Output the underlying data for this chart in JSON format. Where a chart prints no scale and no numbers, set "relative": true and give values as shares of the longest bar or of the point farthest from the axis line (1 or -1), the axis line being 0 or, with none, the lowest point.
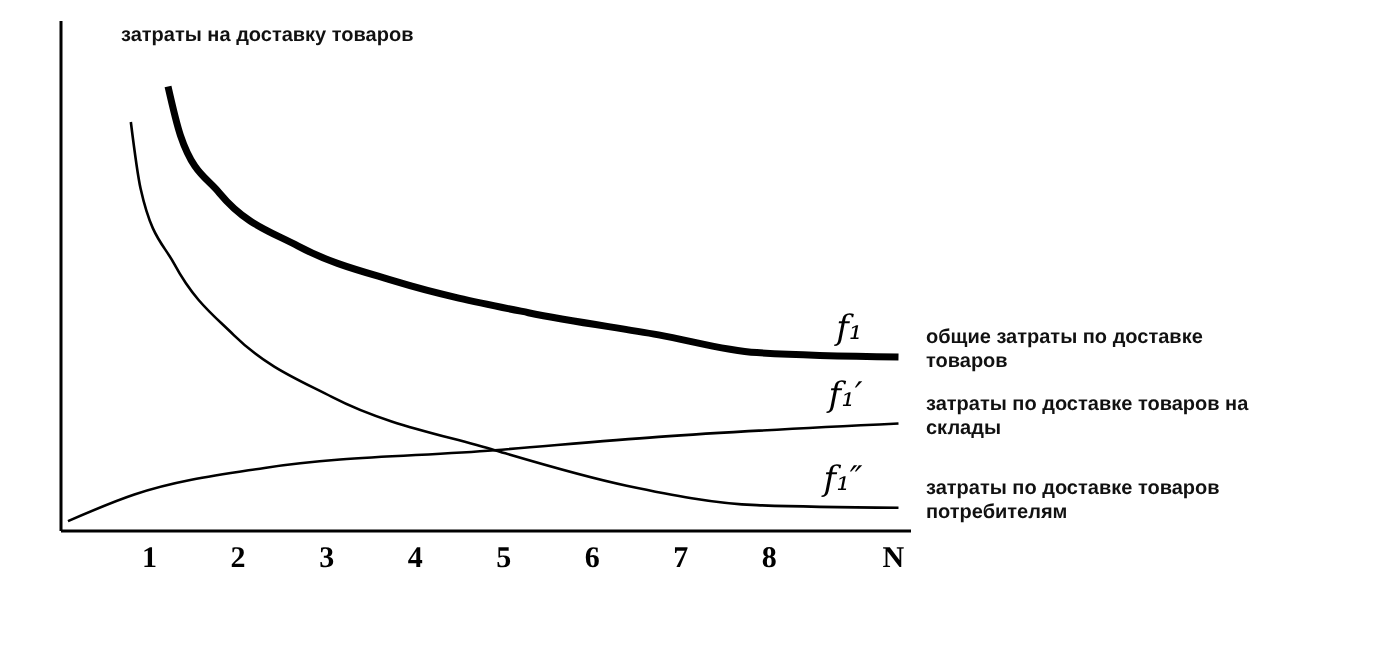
{
  "chart_data": {
    "type": "line",
    "relative": true,
    "ylabel": "затраты на доставку товаров",
    "xlim": [
      0,
      9.6
    ],
    "xticks": [
      1,
      2,
      3,
      4,
      5,
      6,
      7,
      8,
      {
        "value": 9.4,
        "label": "N"
      }
    ],
    "grid": false,
    "marker": "none",
    "line_style": "solid",
    "series": [
      {
        "name": "f₁",
        "color": "#000000",
        "x": [
          1.22,
          1.36,
          1.8,
          2.69,
          3.8,
          5.29,
          6.76,
          7.87,
          9.47
        ],
        "values": [
          1.0,
          0.89,
          0.76,
          0.64,
          0.56,
          0.49,
          0.44,
          0.4,
          0.39
        ]
      },
      {
        "name": "f₁′",
        "color": "#000000",
        "x": [
          0.09,
          0.84,
          2.31,
          4.91,
          6.76,
          9.47
        ],
        "values": [
          0.02,
          0.08,
          0.14,
          0.18,
          0.21,
          0.24
        ]
      },
      {
        "name": "f₁″",
        "color": "#000000",
        "x": [
          0.8,
          0.91,
          1.29,
          1.96,
          3.07,
          4.91,
          6.4,
          7.87,
          9.47
        ],
        "values": [
          0.92,
          0.77,
          0.6,
          0.44,
          0.3,
          0.18,
          0.1,
          0.056,
          0.05
        ]
      }
    ],
    "annotations": [
      "общие затраты по доставке\nтоваров",
      "затраты по доставке товаров на\nсклады",
      "затраты по доставке товаров\nпотребителям"
    ]
  }
}
